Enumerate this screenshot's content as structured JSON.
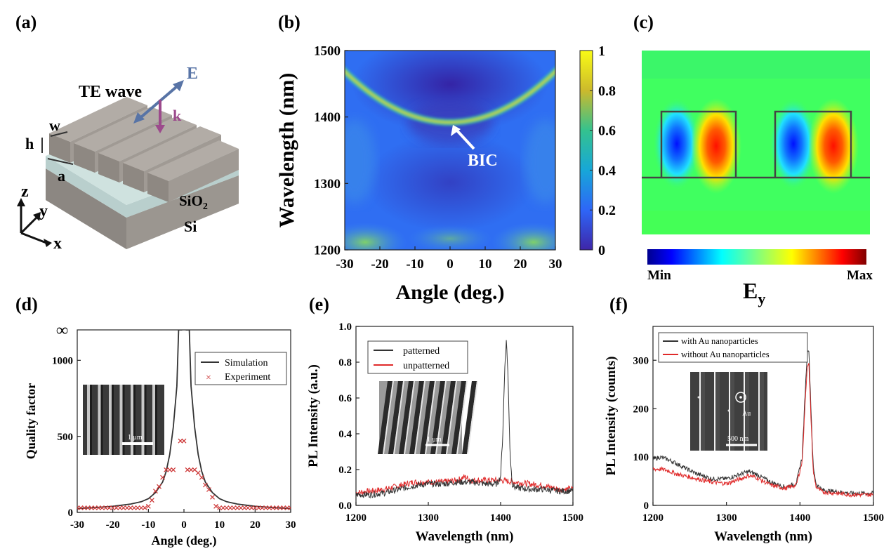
{
  "panels": {
    "a": {
      "label": "(a)",
      "wave_label": "TE wave",
      "e_label": "E",
      "k_label": "k",
      "w_label": "w",
      "h_label": "h",
      "a_label": "a",
      "sio2_base": "SiO",
      "sio2_sub": "2",
      "si_label": "Si",
      "axis_z": "z",
      "axis_y": "y",
      "axis_x": "x",
      "colors": {
        "grating": "#a39d97",
        "sio2": "#c3d8d6",
        "si": "#8c8782",
        "e_arrow": "#5874a6",
        "k_arrow": "#9c4a8c"
      }
    },
    "b": {
      "label": "(b)",
      "annotation": "BIC",
      "colorbar_ticks": [
        "0",
        "0.2",
        "0.4",
        "0.6",
        "0.8",
        "1"
      ],
      "chart_data": {
        "type": "heatmap",
        "xlabel": "Angle (deg.)",
        "ylabel": "Wavelength (nm)",
        "xlim": [
          -30,
          30
        ],
        "ylim": [
          1200,
          1500
        ],
        "xticks": [
          "-30",
          "-20",
          "-10",
          "0",
          "10",
          "20",
          "30"
        ],
        "yticks": [
          "1200",
          "1300",
          "1400",
          "1500"
        ],
        "zlim": [
          0,
          1
        ],
        "band": {
          "angle": [
            -30,
            -20,
            -10,
            0,
            10,
            20,
            30
          ],
          "wavelength": [
            1475,
            1443,
            1410,
            1392,
            1410,
            1443,
            1475
          ]
        },
        "bic_point": {
          "angle": 0,
          "wavelength": 1392
        }
      }
    },
    "c": {
      "label": "(c)",
      "colorbar_min": "Min",
      "colorbar_max": "Max",
      "field_base": "E",
      "field_sub": "y"
    },
    "d": {
      "label": "(d)",
      "infinity": "∞",
      "scale_bar": "1 μm",
      "chart_data": {
        "type": "scatter",
        "xlabel": "Angle (deg.)",
        "ylabel": "Quality factor",
        "xlim": [
          -30,
          30
        ],
        "ylim": [
          0,
          1200
        ],
        "xticks": [
          "-30",
          "-20",
          "-10",
          "0",
          "10",
          "20",
          "30"
        ],
        "yticks": [
          "0",
          "500",
          "1000"
        ],
        "legend_position": "top-right",
        "series": [
          {
            "name": "Simulation",
            "type": "line",
            "color": "#333333",
            "x": [
              -30,
              -25,
              -20,
              -15,
              -12,
              -10,
              -8,
              -6,
              -5,
              -4,
              -3,
              -2,
              -1.5,
              -1,
              -0.7,
              -0.5,
              0.5,
              0.7,
              1,
              1.5,
              2,
              3,
              4,
              5,
              6,
              8,
              10,
              12,
              15,
              20,
              25,
              30
            ],
            "y": [
              25,
              32,
              40,
              55,
              70,
              90,
              130,
              200,
              270,
              380,
              560,
              830,
              1200,
              1200,
              1200,
              1200,
              1200,
              1200,
              1200,
              1200,
              830,
              560,
              380,
              270,
              200,
              130,
              90,
              70,
              55,
              40,
              32,
              25
            ]
          },
          {
            "name": "Experiment",
            "type": "scatter",
            "marker": "x",
            "color": "#cc3333",
            "x": [
              -30,
              -29,
              -28,
              -27,
              -26,
              -25,
              -24,
              -23,
              -22,
              -21,
              -20,
              -19,
              -18,
              -17,
              -16,
              -15,
              -14,
              -13,
              -12,
              -11,
              -10,
              -9,
              -8,
              -7,
              -6,
              -5,
              -4,
              -3,
              -1,
              0,
              1,
              2,
              3,
              4,
              5,
              6,
              7,
              8,
              9,
              10,
              11,
              12,
              13,
              14,
              15,
              16,
              17,
              18,
              19,
              20,
              21,
              22,
              23,
              24,
              25,
              26,
              27,
              28,
              29,
              30
            ],
            "y": [
              30,
              30,
              30,
              30,
              30,
              30,
              30,
              30,
              30,
              30,
              30,
              30,
              30,
              30,
              30,
              30,
              30,
              30,
              30,
              30,
              40,
              80,
              140,
              170,
              230,
              280,
              280,
              280,
              470,
              470,
              280,
              280,
              280,
              260,
              230,
              180,
              150,
              100,
              40,
              30,
              30,
              30,
              30,
              30,
              30,
              30,
              30,
              30,
              30,
              30,
              30,
              30,
              30,
              30,
              30,
              30,
              30,
              30,
              30,
              30
            ]
          }
        ]
      }
    },
    "e": {
      "label": "(e)",
      "scale_bar": "1 μm",
      "chart_data": {
        "type": "line",
        "xlabel": "Wavelength (nm)",
        "ylabel": "PL Intensity (a.u.)",
        "xlim": [
          1200,
          1500
        ],
        "ylim": [
          0,
          1.0
        ],
        "xticks": [
          "1200",
          "1300",
          "1400",
          "1500"
        ],
        "yticks": [
          "0.0",
          "0.2",
          "0.4",
          "0.6",
          "0.8",
          "1.0"
        ],
        "legend_position": "top-left",
        "series": [
          {
            "name": "patterned",
            "color": "#333333",
            "x": [
              1200,
              1220,
              1240,
              1260,
              1280,
              1300,
              1320,
              1340,
              1360,
              1380,
              1395,
              1400,
              1403,
              1406,
              1408,
              1410,
              1413,
              1416,
              1420,
              1440,
              1460,
              1480,
              1500
            ],
            "y": [
              0.06,
              0.06,
              0.07,
              0.09,
              0.11,
              0.12,
              0.12,
              0.13,
              0.13,
              0.12,
              0.12,
              0.16,
              0.4,
              0.8,
              0.92,
              0.75,
              0.3,
              0.12,
              0.1,
              0.09,
              0.09,
              0.08,
              0.08
            ]
          },
          {
            "name": "unpatterned",
            "color": "#e02a2a",
            "x": [
              1200,
              1220,
              1240,
              1260,
              1280,
              1300,
              1320,
              1340,
              1350,
              1360,
              1380,
              1400,
              1420,
              1440,
              1460,
              1480,
              1500
            ],
            "y": [
              0.07,
              0.08,
              0.09,
              0.11,
              0.13,
              0.13,
              0.13,
              0.14,
              0.16,
              0.14,
              0.14,
              0.14,
              0.13,
              0.12,
              0.11,
              0.09,
              0.09
            ]
          }
        ]
      }
    },
    "f": {
      "label": "(f)",
      "scale_bar": "500 nm",
      "au_label": "Au",
      "chart_data": {
        "type": "line",
        "xlabel": "Wavelength (nm)",
        "ylabel": "PL Intensity (counts)",
        "xlim": [
          1200,
          1500
        ],
        "ylim": [
          0,
          370
        ],
        "xticks": [
          "1200",
          "1300",
          "1400",
          "1500"
        ],
        "yticks": [
          "0",
          "100",
          "200",
          "300"
        ],
        "legend_position": "top-left",
        "series": [
          {
            "name": "with Au nanoparticles",
            "color": "#333333",
            "x": [
              1200,
              1210,
              1220,
              1230,
              1240,
              1260,
              1280,
              1300,
              1320,
              1330,
              1340,
              1360,
              1380,
              1395,
              1403,
              1407,
              1410,
              1412,
              1415,
              1418,
              1422,
              1430,
              1450,
              1470,
              1500
            ],
            "y": [
              95,
              100,
              95,
              88,
              80,
              65,
              55,
              55,
              65,
              70,
              65,
              48,
              38,
              45,
              100,
              230,
              320,
              325,
              200,
              80,
              45,
              32,
              28,
              25,
              25
            ]
          },
          {
            "name": "without Au nanoparticles",
            "color": "#e02a2a",
            "x": [
              1200,
              1210,
              1220,
              1230,
              1240,
              1260,
              1280,
              1300,
              1320,
              1330,
              1340,
              1360,
              1380,
              1395,
              1403,
              1407,
              1410,
              1412,
              1415,
              1418,
              1422,
              1430,
              1450,
              1470,
              1500
            ],
            "y": [
              75,
              75,
              72,
              66,
              62,
              55,
              48,
              45,
              55,
              62,
              58,
              42,
              35,
              42,
              90,
              210,
              290,
              295,
              180,
              70,
              38,
              28,
              25,
              22,
              22
            ]
          }
        ]
      }
    }
  }
}
